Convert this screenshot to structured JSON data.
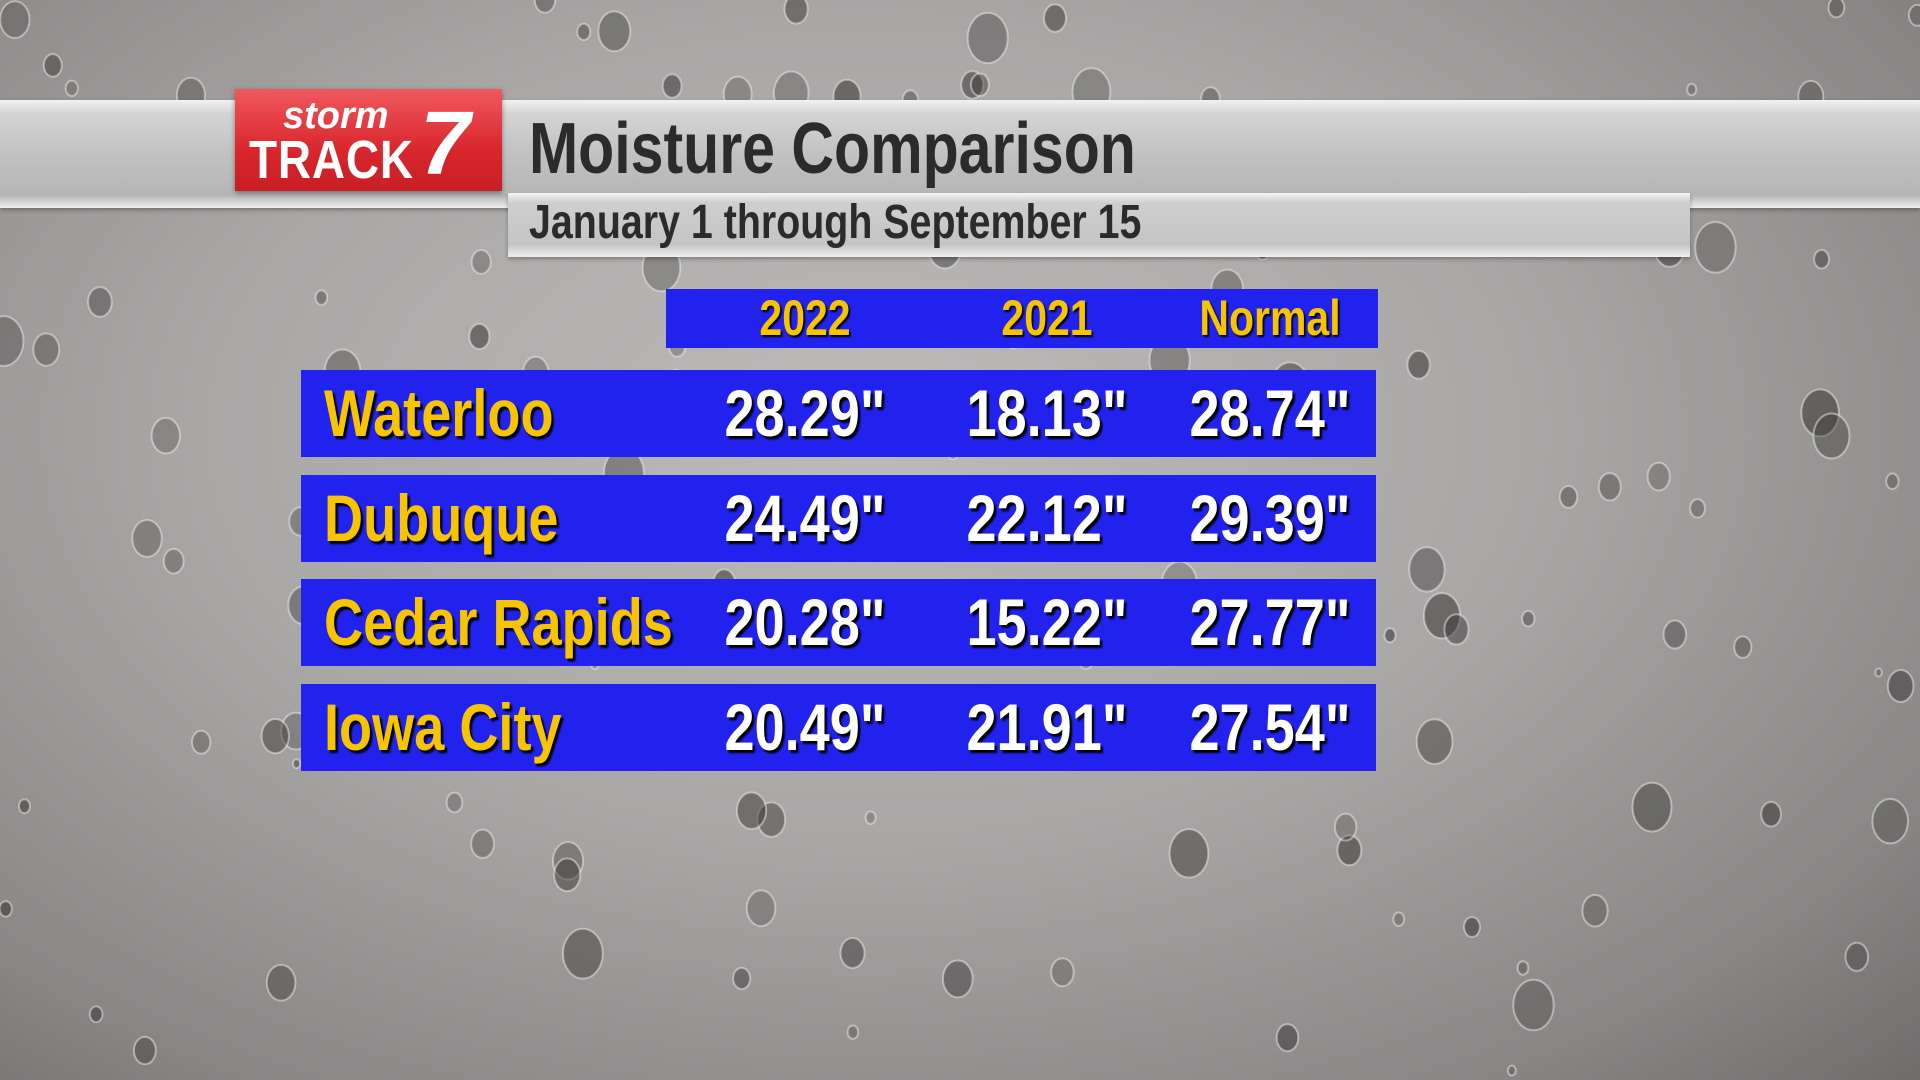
{
  "header": {
    "logo": {
      "top": "storm",
      "bottom": "TRACK",
      "number": "7"
    },
    "title": "Moisture Comparison",
    "subtitle": "January 1 through September 15"
  },
  "table": {
    "columns": [
      "2022",
      "2021",
      "Normal"
    ],
    "rows": [
      {
        "name": "Waterloo",
        "values": [
          "28.29\"",
          "18.13\"",
          "28.74\""
        ]
      },
      {
        "name": "Dubuque",
        "values": [
          "24.49\"",
          "22.12\"",
          "29.39\""
        ]
      },
      {
        "name": "Cedar Rapids",
        "values": [
          "20.28\"",
          "15.22\"",
          "27.77\""
        ]
      },
      {
        "name": "Iowa City",
        "values": [
          "20.49\"",
          "21.91\"",
          "27.54\""
        ]
      }
    ]
  }
}
